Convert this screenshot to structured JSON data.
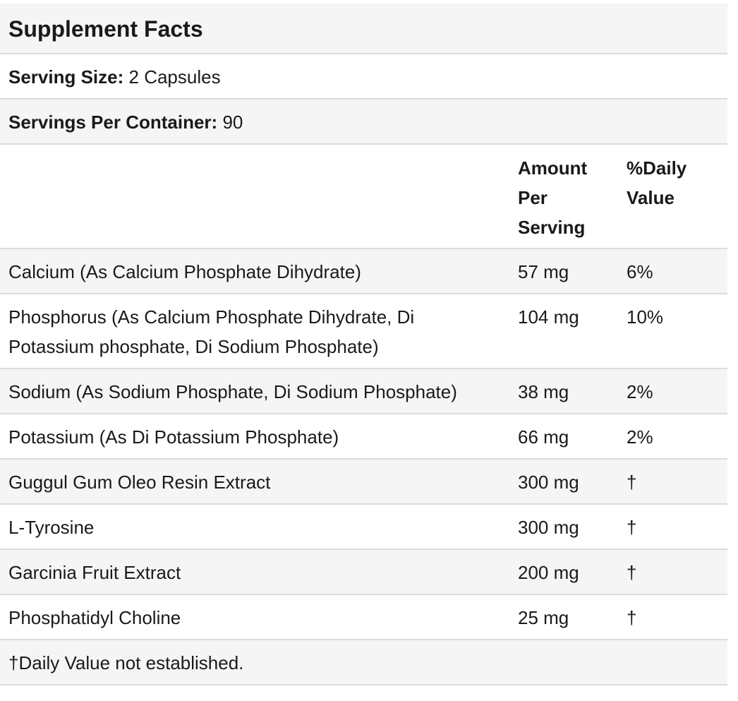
{
  "title": "Supplement Facts",
  "serving_size": {
    "label": "Serving Size:",
    "value": "2 Capsules"
  },
  "servings_per_container": {
    "label": "Servings Per Container:",
    "value": "90"
  },
  "header": {
    "amount_label": "Amount\nPer\nServing",
    "dv_label": "%Daily\nValue"
  },
  "nutrients": [
    {
      "name": "Calcium (As Calcium Phosphate Dihydrate)",
      "amount": "57 mg",
      "dv": "6%"
    },
    {
      "name": "Phosphorus (As Calcium Phosphate Dihydrate, Di Potassium phosphate, Di Sodium Phosphate)",
      "amount": "104 mg",
      "dv": "10%"
    },
    {
      "name": "Sodium (As Sodium Phosphate, Di Sodium Phosphate)",
      "amount": "38 mg",
      "dv": "2%"
    },
    {
      "name": "Potassium (As Di Potassium Phosphate)",
      "amount": "66 mg",
      "dv": "2%"
    },
    {
      "name": "Guggul Gum Oleo Resin Extract",
      "amount": "300 mg",
      "dv": "†"
    },
    {
      "name": "L-Tyrosine",
      "amount": "300 mg",
      "dv": "†"
    },
    {
      "name": "Garcinia Fruit Extract",
      "amount": "200 mg",
      "dv": "†"
    },
    {
      "name": "Phosphatidyl Choline",
      "amount": "25 mg",
      "dv": "†"
    }
  ],
  "footnote": "†Daily Value not established.",
  "colors": {
    "shade": "#f5f5f5",
    "border": "#dcdcdc",
    "text": "#1a1a1a"
  }
}
